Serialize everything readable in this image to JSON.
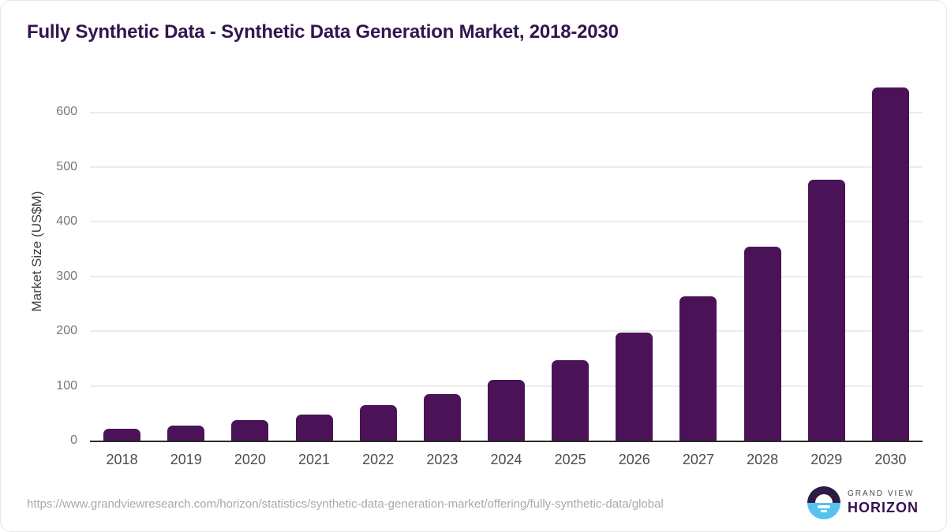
{
  "title": "Fully Synthetic Data - Synthetic Data Generation Market, 2018-2030",
  "chart_data": {
    "type": "bar",
    "categories": [
      "2018",
      "2019",
      "2020",
      "2021",
      "2022",
      "2023",
      "2024",
      "2025",
      "2026",
      "2027",
      "2028",
      "2029",
      "2030"
    ],
    "values": [
      21,
      27,
      37,
      48,
      65,
      85,
      111,
      147,
      197,
      263,
      354,
      477,
      645
    ],
    "title": "Fully Synthetic Data - Synthetic Data Generation Market, 2018-2030",
    "xlabel": "",
    "ylabel": "Market Size (US$M)",
    "ylim": [
      0,
      654
    ],
    "yticks": [
      0,
      100,
      200,
      300,
      400,
      500,
      600
    ],
    "grid": "horizontal-only",
    "legend": "none",
    "bar_color": "#4A1358",
    "axis_line_color": "#2b2b2b",
    "gridline_color": "#ececec"
  },
  "footer": {
    "source_url": "https://www.grandviewresearch.com/horizon/statistics/synthetic-data-generation-market/offering/fully-synthetic-data/global",
    "logo": {
      "line1": "GRAND VIEW",
      "line2": "HORIZON"
    }
  },
  "colors": {
    "title_text": "#331450",
    "logo_purple": "#2E1A47",
    "logo_blue": "#55C3EE",
    "card_border": "#e6e6e6"
  }
}
